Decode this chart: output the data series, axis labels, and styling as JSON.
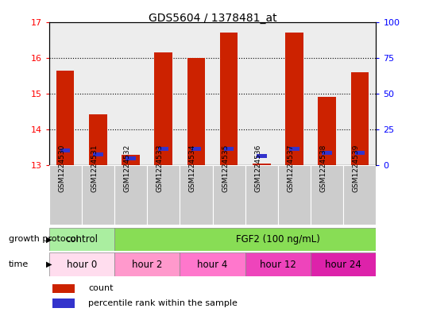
{
  "title": "GDS5604 / 1378481_at",
  "samples": [
    "GSM1224530",
    "GSM1224531",
    "GSM1224532",
    "GSM1224533",
    "GSM1224534",
    "GSM1224535",
    "GSM1224536",
    "GSM1224537",
    "GSM1224538",
    "GSM1224539"
  ],
  "count_values": [
    15.65,
    14.42,
    13.3,
    16.15,
    16.0,
    16.7,
    13.05,
    16.7,
    14.9,
    15.6
  ],
  "percentile_values": [
    13.35,
    13.25,
    13.15,
    13.4,
    13.4,
    13.4,
    13.2,
    13.4,
    13.3,
    13.3
  ],
  "percentile_heights": [
    0.12,
    0.1,
    0.1,
    0.12,
    0.12,
    0.12,
    0.12,
    0.12,
    0.1,
    0.1
  ],
  "base_value": 13.0,
  "ylim_left": [
    13,
    17
  ],
  "ylim_right": [
    0,
    100
  ],
  "yticks_left": [
    13,
    14,
    15,
    16,
    17
  ],
  "yticks_right": [
    0,
    25,
    50,
    75,
    100
  ],
  "bar_color": "#CC2200",
  "percentile_color": "#3333CC",
  "growth_protocol_label": "growth protocol",
  "time_label": "time",
  "control_label": "control",
  "fgf2_label": "FGF2 (100 ng/mL)",
  "time_labels": [
    "hour 0",
    "hour 2",
    "hour 4",
    "hour 12",
    "hour 24"
  ],
  "control_color": "#AAEEA0",
  "fgf2_color": "#88DD55",
  "time_colors_hex": [
    "#FFDDEE",
    "#FF88BB",
    "#FF66BB",
    "#EE44BB",
    "#CC22AA"
  ],
  "legend_count": "count",
  "legend_percentile": "percentile rank within the sample",
  "bar_width": 0.55,
  "sample_bg_color": "#CCCCCC"
}
